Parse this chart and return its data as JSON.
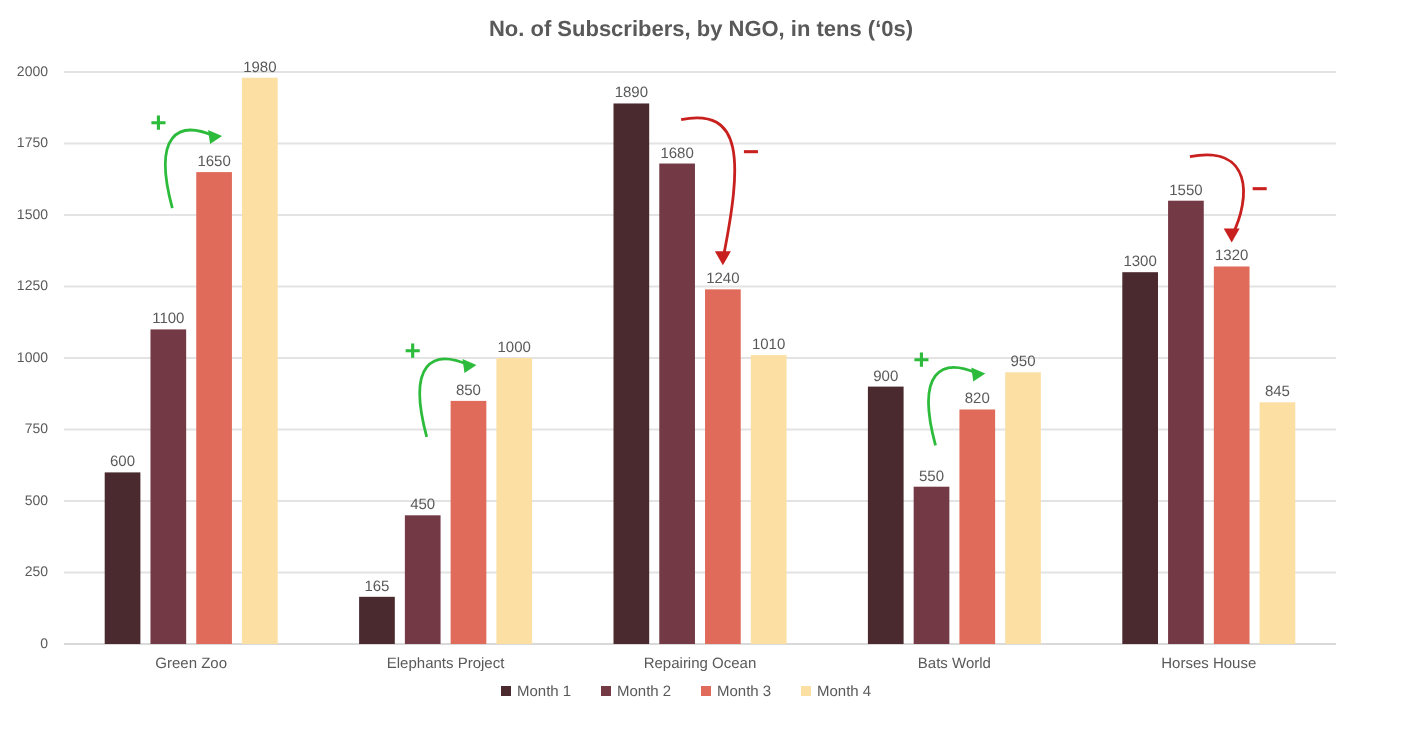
{
  "chart_data": {
    "type": "bar",
    "title": "No. of Subscribers, by NGO, in tens (‘0s)",
    "categories": [
      "Green Zoo",
      "Elephants Project",
      "Repairing Ocean",
      "Bats World",
      "Horses House"
    ],
    "series": [
      {
        "name": "Month 1",
        "color": "#4a2a2f",
        "values": [
          600,
          165,
          1890,
          900,
          1300
        ]
      },
      {
        "name": "Month 2",
        "color": "#733a46",
        "values": [
          1100,
          450,
          1680,
          550,
          1550
        ]
      },
      {
        "name": "Month 3",
        "color": "#e06b5b",
        "values": [
          1650,
          850,
          1240,
          820,
          1320
        ]
      },
      {
        "name": "Month 4",
        "color": "#fcdfa3",
        "values": [
          1980,
          1000,
          1010,
          950,
          845
        ]
      }
    ],
    "ylim": [
      0,
      2000
    ],
    "yticks": [
      0,
      250,
      500,
      750,
      1000,
      1250,
      1500,
      1750,
      2000
    ],
    "grid": "y",
    "legend": "bottom",
    "data_labels": true,
    "annotations": [
      "+",
      "+",
      "−",
      "+",
      "−"
    ]
  }
}
